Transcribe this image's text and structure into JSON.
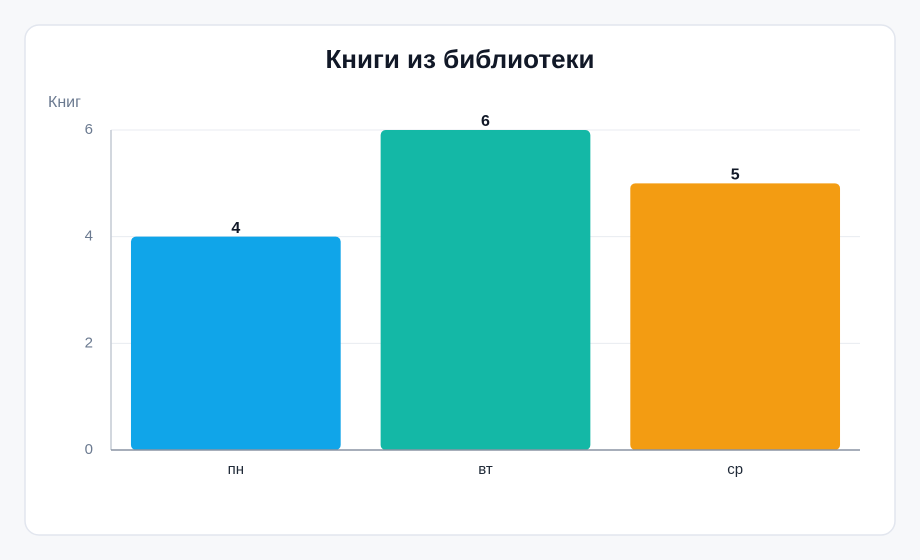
{
  "chart_data": {
    "type": "bar",
    "title": "Книги из библиотеки",
    "y_label": "Книг",
    "categories": [
      "пн",
      "вт",
      "ср"
    ],
    "values": [
      4,
      6,
      5
    ],
    "colors": [
      "#10a5e9",
      "#14b8a6",
      "#f39c12"
    ],
    "ylim": [
      0,
      6
    ],
    "yticks": [
      0,
      2,
      4,
      6
    ],
    "grid": true
  }
}
